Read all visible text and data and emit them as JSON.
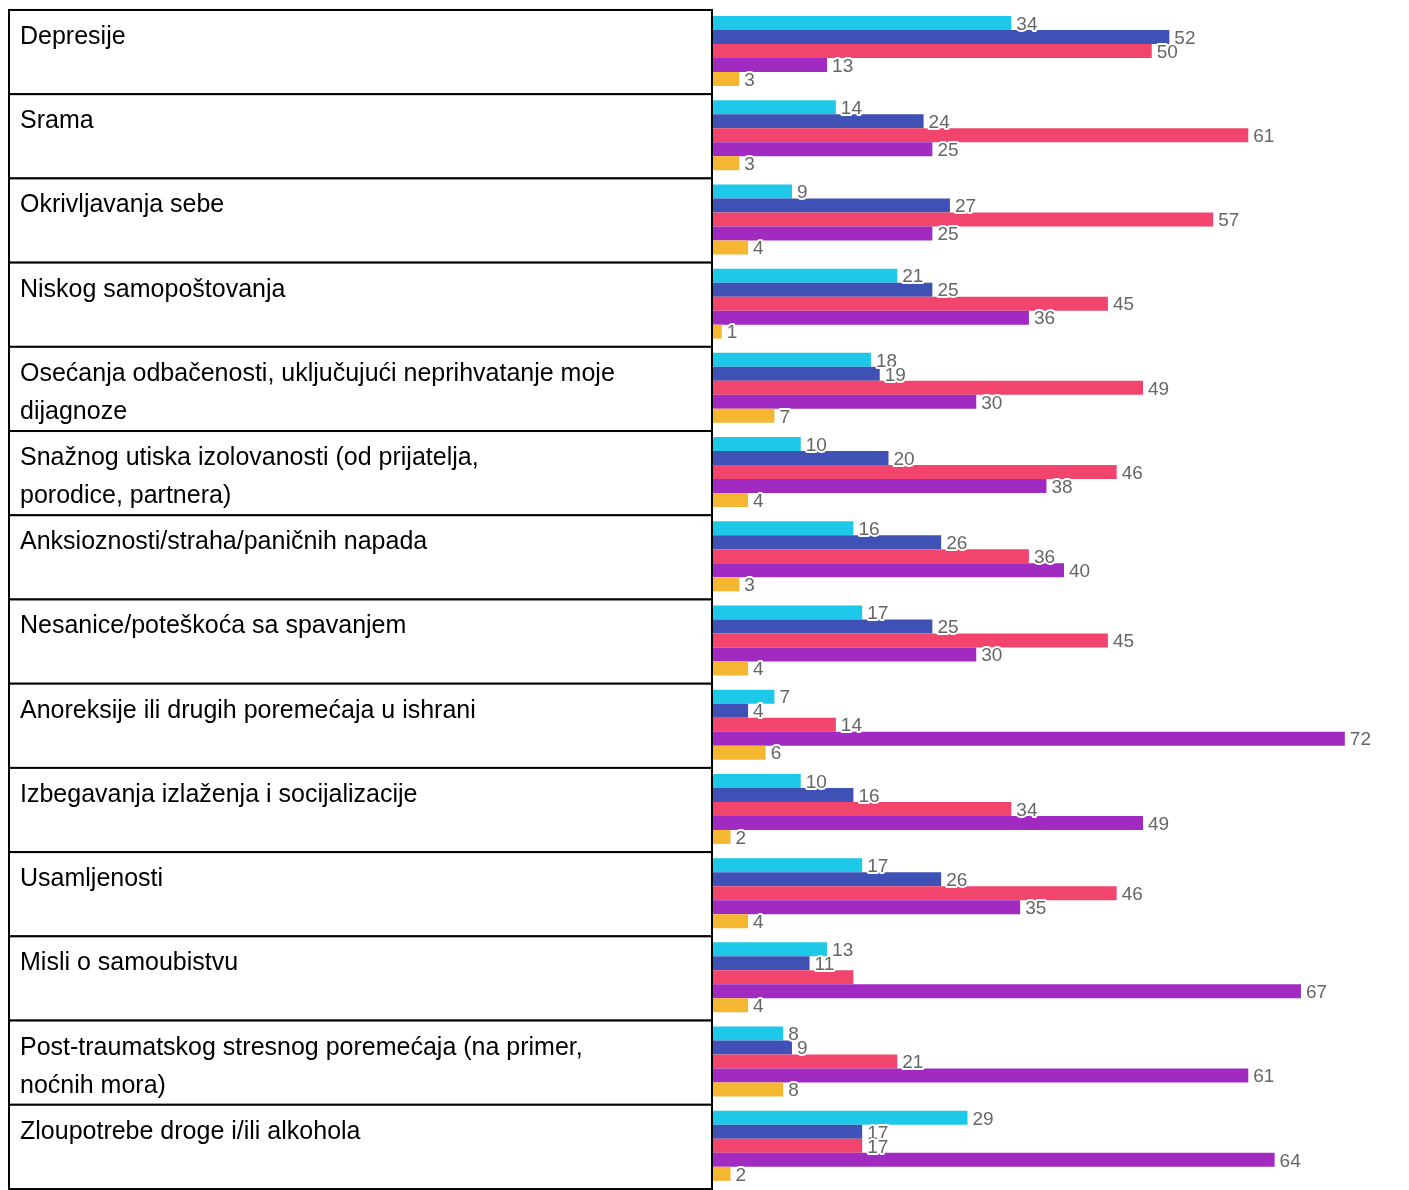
{
  "chart_data": {
    "type": "bar",
    "orientation": "horizontal",
    "categories": [
      "Depresije",
      "Srama",
      "Okrivljavanja sebe",
      "Niskog samopoštovanja",
      "Osećanja odbačenosti, uključujući neprihvatanje moje dijagnoze",
      "Snažnog utiska izolovanosti (od prijatelja, porodice, partnera)",
      "Anksioznosti/straha/paničnih napada",
      "Nesanice/poteškoća sa spavanjem",
      "Anoreksije ili drugih poremećaja u ishrani",
      "Izbegavanja izlaženja i socijalizacije",
      "Usamljenosti",
      "Misli o samoubistvu",
      "Post-traumatskog stresnog poremećaja (na primer, noćnih mora)",
      "Zloupotrebe droge i/ili alkohola"
    ],
    "series": [
      {
        "color": "#1ec8e8",
        "values": [
          34,
          14,
          9,
          21,
          18,
          10,
          16,
          17,
          7,
          10,
          17,
          13,
          8,
          29
        ],
        "value_labels": [
          "34",
          "14",
          "9",
          "21",
          "18",
          "10",
          "16",
          "17",
          "7",
          "10",
          "17",
          "13",
          "8",
          "29"
        ]
      },
      {
        "color": "#3f51b5",
        "values": [
          52,
          24,
          27,
          25,
          19,
          20,
          26,
          25,
          4,
          16,
          26,
          11,
          9,
          17
        ],
        "value_labels": [
          "52",
          "24",
          "27",
          "25",
          "19",
          "20",
          "26",
          "25",
          "4",
          "16",
          "26",
          "11",
          "9",
          "17"
        ]
      },
      {
        "color": "#f2456e",
        "values": [
          50,
          61,
          57,
          45,
          49,
          46,
          36,
          45,
          14,
          34,
          46,
          16,
          21,
          17
        ],
        "value_labels": [
          "50",
          "61",
          "57",
          "45",
          "49",
          "46",
          "36",
          "45",
          "14",
          "34",
          "46",
          null,
          "21",
          "17"
        ]
      },
      {
        "color": "#a12ac0",
        "values": [
          13,
          25,
          25,
          36,
          30,
          38,
          40,
          30,
          72,
          49,
          35,
          67,
          61,
          64
        ],
        "value_labels": [
          "13",
          "25",
          "25",
          "36",
          "30",
          "38",
          "40",
          "30",
          "72",
          "49",
          "35",
          "67",
          "61",
          "64"
        ]
      },
      {
        "color": "#f5b731",
        "values": [
          3,
          3,
          4,
          1,
          7,
          4,
          3,
          4,
          6,
          2,
          4,
          4,
          8,
          2
        ],
        "value_labels": [
          "3",
          "3",
          "4",
          "1",
          "7",
          "4",
          "3",
          "4",
          "6",
          "2",
          "4",
          "4",
          "8",
          "2"
        ]
      }
    ],
    "tick_labels": "y"
  }
}
